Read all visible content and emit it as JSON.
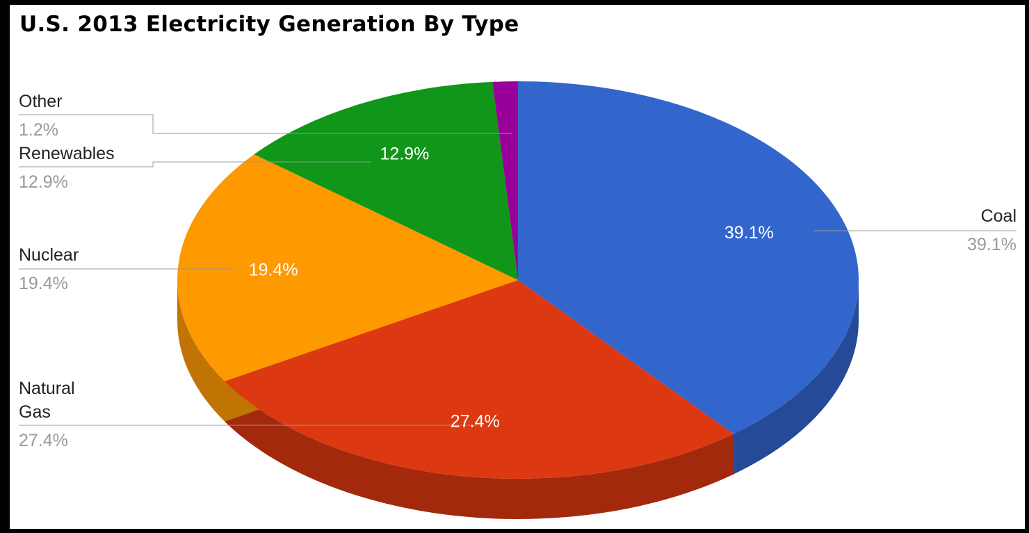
{
  "chart_data": {
    "type": "pie",
    "title": "U.S. 2013 Electricity Generation By Type",
    "three_d": true,
    "slices": [
      {
        "name": "Coal",
        "value": 39.1,
        "label": "39.1%",
        "color": "#3366cc",
        "side_color": "#254a98"
      },
      {
        "name": "Natural Gas",
        "value": 27.4,
        "label": "27.4%",
        "color": "#dc3912",
        "side_color": "#a3290c"
      },
      {
        "name": "Nuclear",
        "value": 19.4,
        "label": "19.4%",
        "color": "#ff9900",
        "side_color": "#c17303"
      },
      {
        "name": "Renewables",
        "value": 12.9,
        "label": "12.9%",
        "color": "#109618",
        "side_color": "#0b6d11"
      },
      {
        "name": "Other",
        "value": 1.2,
        "label": "1.2%",
        "color": "#990099",
        "side_color": "#6d006d"
      }
    ],
    "inside_labels": [
      "39.1%",
      "27.4%",
      "19.4%",
      "12.9%"
    ],
    "external_labels": [
      {
        "name_lines": [
          "Other"
        ],
        "value": "1.2%"
      },
      {
        "name_lines": [
          "Renewables"
        ],
        "value": "12.9%"
      },
      {
        "name_lines": [
          "Nuclear"
        ],
        "value": "19.4%"
      },
      {
        "name_lines": [
          "Natural",
          "Gas"
        ],
        "value": "27.4%"
      },
      {
        "name_lines": [
          "Coal"
        ],
        "value": "39.1%"
      }
    ],
    "legend": "labeled",
    "colors": {
      "background": "#ffffff",
      "frame": "#000000",
      "label_text": "#222222",
      "value_text": "#999999",
      "leader_line": "#999999"
    }
  }
}
